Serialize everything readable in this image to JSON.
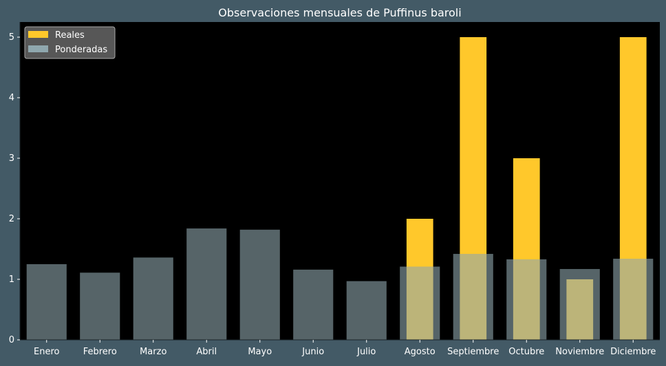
{
  "chart_data": {
    "type": "bar",
    "title": "Observaciones mensuales de Puffinus baroli",
    "xlabel": "",
    "ylabel": "",
    "categories": [
      "Enero",
      "Febrero",
      "Marzo",
      "Abril",
      "Mayo",
      "Junio",
      "Julio",
      "Agosto",
      "Septiembre",
      "Octubre",
      "Noviembre",
      "Diciembre"
    ],
    "ylim": [
      0,
      5.25
    ],
    "yticks": [
      "0",
      "1",
      "2",
      "3",
      "4",
      "5"
    ],
    "grid": false,
    "legend_position": "top-left",
    "series": [
      {
        "name": "Reales",
        "color": "#ffc82b",
        "values": [
          0,
          0,
          0,
          0,
          0,
          0,
          0,
          2,
          5,
          3,
          1,
          5
        ]
      },
      {
        "name": "Ponderadas",
        "color": "#8fa7ae",
        "values": [
          1.25,
          1.11,
          1.36,
          1.84,
          1.82,
          1.16,
          0.97,
          1.21,
          1.42,
          1.33,
          1.17,
          1.34
        ]
      }
    ],
    "colors": {
      "page_background": "#435a66",
      "plot_background": "#000000",
      "text": "#ffffff"
    }
  }
}
